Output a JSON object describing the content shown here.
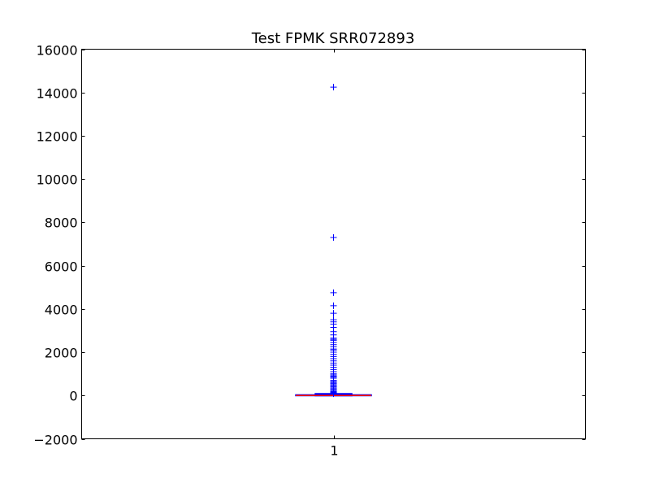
{
  "chart_data": {
    "type": "boxplot",
    "title": "Test FPMK SRR072893",
    "xlabel": "",
    "ylabel": "",
    "categories": [
      "1"
    ],
    "ylim": [
      -2000,
      16000
    ],
    "yticks": [
      -2000,
      0,
      2000,
      4000,
      6000,
      8000,
      10000,
      12000,
      14000,
      16000
    ],
    "ytick_labels": [
      "−2000",
      "0",
      "2000",
      "4000",
      "6000",
      "8000",
      "10000",
      "12000",
      "14000",
      "16000"
    ],
    "xticks": [
      1
    ],
    "xtick_labels": [
      "1"
    ],
    "box": {
      "q1": 0,
      "median": 2,
      "q3": 30,
      "whisker_low": 0,
      "whisker_high": 75
    },
    "outliers": [
      14250,
      7300,
      4750,
      4150,
      3800,
      3500,
      3400,
      3300,
      3150,
      2950,
      2800,
      2650,
      2600,
      2550,
      2450,
      2350,
      2250,
      2150,
      2100,
      2000,
      1900,
      1800,
      1700,
      1600,
      1500,
      1400,
      1300,
      1200,
      1100,
      1000,
      950,
      900,
      850,
      800,
      700,
      650,
      600,
      550,
      500,
      450,
      400,
      350,
      300,
      250,
      200,
      180,
      160,
      140,
      120,
      100,
      90,
      80
    ],
    "grid": false,
    "colors": {
      "box": "#0000ff",
      "median": "#ff0000",
      "outlier": "#0000ff",
      "axes": "#000000"
    }
  }
}
